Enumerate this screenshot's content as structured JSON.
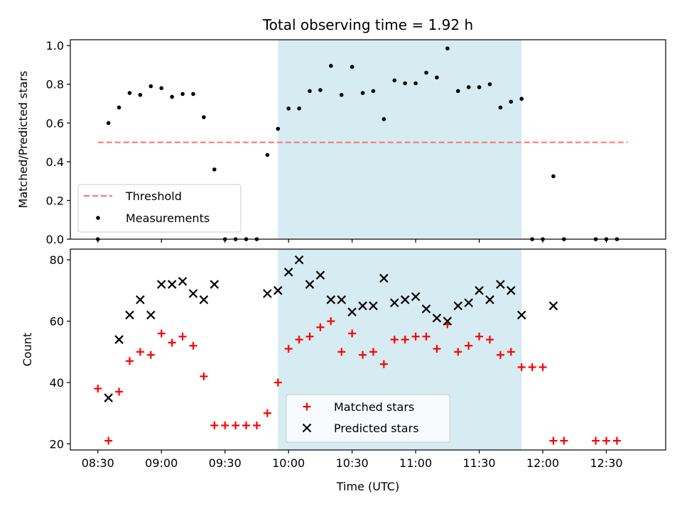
{
  "chart_data": {
    "title": "Total observing time = 1.92 h",
    "xlabel": "Time (UTC)",
    "x_tick_labels": [
      "08:30",
      "09:00",
      "09:30",
      "10:00",
      "10:30",
      "11:00",
      "11:30",
      "12:00",
      "12:30"
    ],
    "x_ticks_minutes": [
      510,
      540,
      570,
      600,
      630,
      660,
      690,
      720,
      750
    ],
    "xlim_minutes": [
      497,
      778
    ],
    "shaded_interval_minutes": [
      595,
      710
    ],
    "shade_color": "#add8e6",
    "panels": [
      {
        "type": "scatter",
        "ylabel": "Matched/Predicted stars",
        "ylim": [
          0,
          1.03
        ],
        "y_ticks": [
          0.0,
          0.2,
          0.4,
          0.6,
          0.8,
          1.0
        ],
        "y_tick_labels": [
          "0.0",
          "0.2",
          "0.4",
          "0.6",
          "0.8",
          "1.0"
        ],
        "legend_position": "lower-left",
        "threshold": {
          "name": "Threshold",
          "value": 0.5,
          "x_range": [
            510,
            760
          ],
          "color": "#ff7070"
        },
        "series": [
          {
            "name": "Measurements",
            "marker": "dot",
            "color": "#000000",
            "points": [
              [
                510,
                0.0
              ],
              [
                515,
                0.6
              ],
              [
                520,
                0.68
              ],
              [
                525,
                0.755
              ],
              [
                530,
                0.745
              ],
              [
                535,
                0.79
              ],
              [
                540,
                0.78
              ],
              [
                545,
                0.735
              ],
              [
                550,
                0.75
              ],
              [
                555,
                0.75
              ],
              [
                560,
                0.63
              ],
              [
                565,
                0.36
              ],
              [
                570,
                0.0
              ],
              [
                575,
                0.0
              ],
              [
                580,
                0.0
              ],
              [
                585,
                0.0
              ],
              [
                590,
                0.435
              ],
              [
                595,
                0.57
              ],
              [
                600,
                0.675
              ],
              [
                605,
                0.675
              ],
              [
                610,
                0.765
              ],
              [
                615,
                0.77
              ],
              [
                620,
                0.895
              ],
              [
                625,
                0.745
              ],
              [
                630,
                0.89
              ],
              [
                635,
                0.755
              ],
              [
                640,
                0.765
              ],
              [
                645,
                0.62
              ],
              [
                650,
                0.82
              ],
              [
                655,
                0.805
              ],
              [
                660,
                0.805
              ],
              [
                665,
                0.86
              ],
              [
                670,
                0.835
              ],
              [
                675,
                0.985
              ],
              [
                680,
                0.765
              ],
              [
                685,
                0.785
              ],
              [
                690,
                0.785
              ],
              [
                695,
                0.8
              ],
              [
                700,
                0.68
              ],
              [
                705,
                0.71
              ],
              [
                710,
                0.725
              ],
              [
                715,
                0.0
              ],
              [
                720,
                0.0
              ],
              [
                725,
                0.325
              ],
              [
                730,
                0.0
              ],
              [
                745,
                0.0
              ],
              [
                750,
                0.0
              ],
              [
                755,
                0.0
              ]
            ]
          }
        ]
      },
      {
        "type": "scatter",
        "ylabel": "Count",
        "ylim": [
          18,
          83.5
        ],
        "y_ticks": [
          20,
          40,
          60,
          80
        ],
        "y_tick_labels": [
          "20",
          "40",
          "60",
          "80"
        ],
        "legend_position": "lower-center",
        "series": [
          {
            "name": "Matched stars",
            "marker": "plus",
            "color": "#ff0000",
            "points": [
              [
                510,
                38
              ],
              [
                515,
                21
              ],
              [
                520,
                37
              ],
              [
                525,
                47
              ],
              [
                530,
                50
              ],
              [
                535,
                49
              ],
              [
                540,
                56
              ],
              [
                545,
                53
              ],
              [
                550,
                55
              ],
              [
                555,
                52
              ],
              [
                560,
                42
              ],
              [
                565,
                26
              ],
              [
                570,
                26
              ],
              [
                575,
                26
              ],
              [
                580,
                26
              ],
              [
                585,
                26
              ],
              [
                590,
                30
              ],
              [
                595,
                40
              ],
              [
                600,
                51
              ],
              [
                605,
                54
              ],
              [
                610,
                55
              ],
              [
                615,
                58
              ],
              [
                620,
                60
              ],
              [
                625,
                50
              ],
              [
                630,
                56
              ],
              [
                635,
                49
              ],
              [
                640,
                50
              ],
              [
                645,
                46
              ],
              [
                650,
                54
              ],
              [
                655,
                54
              ],
              [
                660,
                55
              ],
              [
                665,
                55
              ],
              [
                670,
                51
              ],
              [
                675,
                59
              ],
              [
                680,
                50
              ],
              [
                685,
                52
              ],
              [
                690,
                55
              ],
              [
                695,
                54
              ],
              [
                700,
                49
              ],
              [
                705,
                50
              ],
              [
                710,
                45
              ],
              [
                715,
                45
              ],
              [
                720,
                45
              ],
              [
                725,
                21
              ],
              [
                730,
                21
              ],
              [
                745,
                21
              ],
              [
                750,
                21
              ],
              [
                755,
                21
              ]
            ]
          },
          {
            "name": "Predicted stars",
            "marker": "x",
            "color": "#000000",
            "points": [
              [
                515,
                35
              ],
              [
                520,
                54
              ],
              [
                525,
                62
              ],
              [
                530,
                67
              ],
              [
                535,
                62
              ],
              [
                540,
                72
              ],
              [
                545,
                72
              ],
              [
                550,
                73
              ],
              [
                555,
                69
              ],
              [
                560,
                67
              ],
              [
                565,
                72
              ],
              [
                590,
                69
              ],
              [
                595,
                70
              ],
              [
                600,
                76
              ],
              [
                605,
                80
              ],
              [
                610,
                72
              ],
              [
                615,
                75
              ],
              [
                620,
                67
              ],
              [
                625,
                67
              ],
              [
                630,
                63
              ],
              [
                635,
                65
              ],
              [
                640,
                65
              ],
              [
                645,
                74
              ],
              [
                650,
                66
              ],
              [
                655,
                67
              ],
              [
                660,
                68
              ],
              [
                665,
                64
              ],
              [
                670,
                61
              ],
              [
                675,
                60
              ],
              [
                680,
                65
              ],
              [
                685,
                66
              ],
              [
                690,
                70
              ],
              [
                695,
                67
              ],
              [
                700,
                72
              ],
              [
                705,
                70
              ],
              [
                710,
                62
              ],
              [
                725,
                65
              ]
            ]
          }
        ]
      }
    ]
  }
}
